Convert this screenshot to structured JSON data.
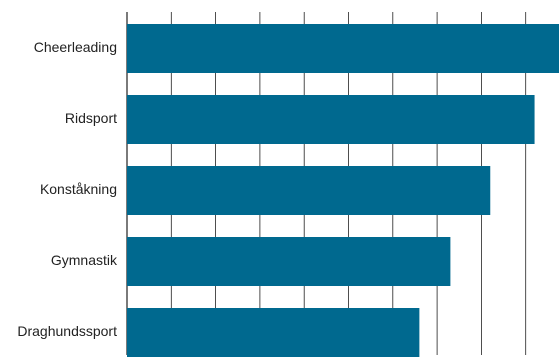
{
  "chart_data": {
    "type": "bar",
    "orientation": "horizontal",
    "categories": [
      "Cheerleading",
      "Ridsport",
      "Konståkning",
      "Gymnastik",
      "Draghundssport"
    ],
    "values": [
      98,
      92,
      82,
      73,
      66
    ],
    "xlim": [
      0,
      100
    ],
    "x_grid_step": 10,
    "grid": true,
    "title": "",
    "xlabel": "",
    "ylabel": "",
    "bar_color": "#00698f",
    "grid_color": "#222222"
  }
}
